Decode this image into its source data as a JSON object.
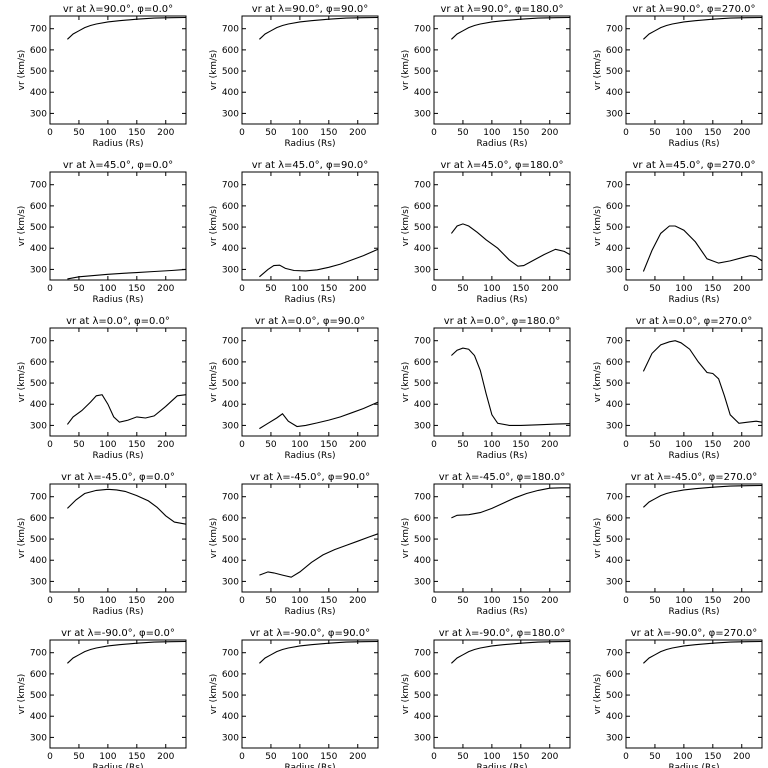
{
  "figure": {
    "background": "#ffffff",
    "line_color": "#000000"
  },
  "chart_data": [
    {
      "type": "line",
      "title": "vr at λ=90.0°, φ=0.0°",
      "xlabel": "Radius (Rs)",
      "ylabel": "vr (km/s)",
      "xlim": [
        0,
        235
      ],
      "ylim": [
        250,
        760
      ],
      "xticks": [
        0,
        50,
        100,
        150,
        200
      ],
      "yticks": [
        300,
        400,
        500,
        600,
        700
      ],
      "grid": false,
      "series": [
        {
          "x": [
            30,
            40,
            50,
            60,
            70,
            80,
            100,
            120,
            150,
            180,
            210,
            235
          ],
          "y": [
            650,
            675,
            690,
            705,
            715,
            722,
            732,
            738,
            745,
            750,
            752,
            753
          ]
        }
      ]
    },
    {
      "type": "line",
      "title": "vr at λ=90.0°, φ=90.0°",
      "xlabel": "Radius (Rs)",
      "ylabel": "vr (km/s)",
      "xlim": [
        0,
        235
      ],
      "ylim": [
        250,
        760
      ],
      "xticks": [
        0,
        50,
        100,
        150,
        200
      ],
      "yticks": [
        300,
        400,
        500,
        600,
        700
      ],
      "grid": false,
      "series": [
        {
          "x": [
            30,
            40,
            50,
            60,
            70,
            80,
            100,
            120,
            150,
            180,
            210,
            235
          ],
          "y": [
            650,
            675,
            690,
            705,
            715,
            722,
            732,
            738,
            745,
            750,
            752,
            753
          ]
        }
      ]
    },
    {
      "type": "line",
      "title": "vr at λ=90.0°, φ=180.0°",
      "xlabel": "Radius (Rs)",
      "ylabel": "vr (km/s)",
      "xlim": [
        0,
        235
      ],
      "ylim": [
        250,
        760
      ],
      "xticks": [
        0,
        50,
        100,
        150,
        200
      ],
      "yticks": [
        300,
        400,
        500,
        600,
        700
      ],
      "grid": false,
      "series": [
        {
          "x": [
            30,
            40,
            50,
            60,
            70,
            80,
            100,
            120,
            150,
            180,
            210,
            235
          ],
          "y": [
            650,
            675,
            690,
            705,
            715,
            722,
            732,
            738,
            745,
            750,
            752,
            753
          ]
        }
      ]
    },
    {
      "type": "line",
      "title": "vr at λ=90.0°, φ=270.0°",
      "xlabel": "Radius (Rs)",
      "ylabel": "vr (km/s)",
      "xlim": [
        0,
        235
      ],
      "ylim": [
        250,
        760
      ],
      "xticks": [
        0,
        50,
        100,
        150,
        200
      ],
      "yticks": [
        300,
        400,
        500,
        600,
        700
      ],
      "grid": false,
      "series": [
        {
          "x": [
            30,
            40,
            50,
            60,
            70,
            80,
            100,
            120,
            150,
            180,
            210,
            235
          ],
          "y": [
            650,
            675,
            690,
            705,
            715,
            722,
            732,
            738,
            745,
            750,
            752,
            753
          ]
        }
      ]
    },
    {
      "type": "line",
      "title": "vr at λ=45.0°, φ=0.0°",
      "xlabel": "Radius (Rs)",
      "ylabel": "vr (km/s)",
      "xlim": [
        0,
        235
      ],
      "ylim": [
        250,
        760
      ],
      "xticks": [
        0,
        50,
        100,
        150,
        200
      ],
      "yticks": [
        300,
        400,
        500,
        600,
        700
      ],
      "grid": false,
      "series": [
        {
          "x": [
            30,
            50,
            80,
            100,
            130,
            150,
            180,
            210,
            235
          ],
          "y": [
            255,
            265,
            272,
            277,
            282,
            285,
            290,
            295,
            300
          ]
        }
      ]
    },
    {
      "type": "line",
      "title": "vr at λ=45.0°, φ=90.0°",
      "xlabel": "Radius (Rs)",
      "ylabel": "vr (km/s)",
      "xlim": [
        0,
        235
      ],
      "ylim": [
        250,
        760
      ],
      "xticks": [
        0,
        50,
        100,
        150,
        200
      ],
      "yticks": [
        300,
        400,
        500,
        600,
        700
      ],
      "grid": false,
      "series": [
        {
          "x": [
            30,
            45,
            55,
            65,
            75,
            90,
            110,
            130,
            150,
            170,
            190,
            210,
            235
          ],
          "y": [
            265,
            300,
            318,
            320,
            305,
            295,
            293,
            298,
            310,
            325,
            345,
            365,
            395
          ]
        }
      ]
    },
    {
      "type": "line",
      "title": "vr at λ=45.0°, φ=180.0°",
      "xlabel": "Radius (Rs)",
      "ylabel": "vr (km/s)",
      "xlim": [
        0,
        235
      ],
      "ylim": [
        250,
        760
      ],
      "xticks": [
        0,
        50,
        100,
        150,
        200
      ],
      "yticks": [
        300,
        400,
        500,
        600,
        700
      ],
      "grid": false,
      "series": [
        {
          "x": [
            30,
            40,
            50,
            60,
            75,
            90,
            110,
            130,
            145,
            155,
            170,
            190,
            210,
            225,
            235
          ],
          "y": [
            470,
            505,
            515,
            505,
            475,
            440,
            400,
            345,
            315,
            318,
            340,
            370,
            395,
            385,
            370
          ]
        }
      ]
    },
    {
      "type": "line",
      "title": "vr at λ=45.0°, φ=270.0°",
      "xlabel": "Radius (Rs)",
      "ylabel": "vr (km/s)",
      "xlim": [
        0,
        235
      ],
      "ylim": [
        250,
        760
      ],
      "xticks": [
        0,
        50,
        100,
        150,
        200
      ],
      "yticks": [
        300,
        400,
        500,
        600,
        700
      ],
      "grid": false,
      "series": [
        {
          "x": [
            30,
            45,
            60,
            75,
            85,
            100,
            120,
            140,
            160,
            180,
            200,
            215,
            225,
            235
          ],
          "y": [
            290,
            390,
            470,
            505,
            505,
            485,
            430,
            350,
            330,
            340,
            355,
            365,
            360,
            340
          ]
        }
      ]
    },
    {
      "type": "line",
      "title": "vr at λ=0.0°, φ=0.0°",
      "xlabel": "Radius (Rs)",
      "ylabel": "vr (km/s)",
      "xlim": [
        0,
        235
      ],
      "ylim": [
        250,
        760
      ],
      "xticks": [
        0,
        50,
        100,
        150,
        200
      ],
      "yticks": [
        300,
        400,
        500,
        600,
        700
      ],
      "grid": false,
      "series": [
        {
          "x": [
            30,
            40,
            55,
            70,
            80,
            90,
            100,
            110,
            120,
            135,
            150,
            165,
            180,
            200,
            220,
            235
          ],
          "y": [
            305,
            340,
            370,
            410,
            440,
            445,
            400,
            340,
            315,
            325,
            340,
            335,
            345,
            390,
            440,
            445
          ]
        }
      ]
    },
    {
      "type": "line",
      "title": "vr at λ=0.0°, φ=90.0°",
      "xlabel": "Radius (Rs)",
      "ylabel": "vr (km/s)",
      "xlim": [
        0,
        235
      ],
      "ylim": [
        250,
        760
      ],
      "xticks": [
        0,
        50,
        100,
        150,
        200
      ],
      "yticks": [
        300,
        400,
        500,
        600,
        700
      ],
      "grid": false,
      "series": [
        {
          "x": [
            30,
            45,
            60,
            70,
            80,
            95,
            110,
            130,
            150,
            170,
            190,
            210,
            235
          ],
          "y": [
            285,
            310,
            335,
            355,
            320,
            295,
            300,
            312,
            325,
            340,
            360,
            380,
            410
          ]
        }
      ]
    },
    {
      "type": "line",
      "title": "vr at λ=0.0°, φ=180.0°",
      "xlabel": "Radius (Rs)",
      "ylabel": "vr (km/s)",
      "xlim": [
        0,
        235
      ],
      "ylim": [
        250,
        760
      ],
      "xticks": [
        0,
        50,
        100,
        150,
        200
      ],
      "yticks": [
        300,
        400,
        500,
        600,
        700
      ],
      "grid": false,
      "series": [
        {
          "x": [
            30,
            40,
            50,
            60,
            70,
            80,
            90,
            100,
            110,
            130,
            150,
            180,
            210,
            235
          ],
          "y": [
            630,
            655,
            665,
            660,
            630,
            560,
            450,
            350,
            310,
            300,
            300,
            303,
            306,
            308
          ]
        }
      ]
    },
    {
      "type": "line",
      "title": "vr at λ=0.0°, φ=270.0°",
      "xlabel": "Radius (Rs)",
      "ylabel": "vr (km/s)",
      "xlim": [
        0,
        235
      ],
      "ylim": [
        250,
        760
      ],
      "xticks": [
        0,
        50,
        100,
        150,
        200
      ],
      "yticks": [
        300,
        400,
        500,
        600,
        700
      ],
      "grid": false,
      "series": [
        {
          "x": [
            30,
            45,
            60,
            75,
            85,
            95,
            110,
            125,
            140,
            150,
            160,
            170,
            180,
            195,
            210,
            225,
            235
          ],
          "y": [
            555,
            640,
            680,
            695,
            700,
            690,
            660,
            600,
            550,
            545,
            520,
            440,
            350,
            310,
            315,
            320,
            315
          ]
        }
      ]
    },
    {
      "type": "line",
      "title": "vr at λ=-45.0°, φ=0.0°",
      "xlabel": "Radius (Rs)",
      "ylabel": "vr (km/s)",
      "xlim": [
        0,
        235
      ],
      "ylim": [
        250,
        760
      ],
      "xticks": [
        0,
        50,
        100,
        150,
        200
      ],
      "yticks": [
        300,
        400,
        500,
        600,
        700
      ],
      "grid": false,
      "series": [
        {
          "x": [
            30,
            45,
            60,
            80,
            100,
            115,
            130,
            150,
            170,
            185,
            200,
            215,
            235
          ],
          "y": [
            645,
            685,
            715,
            730,
            735,
            732,
            725,
            705,
            680,
            650,
            610,
            580,
            570
          ]
        }
      ]
    },
    {
      "type": "line",
      "title": "vr at λ=-45.0°, φ=90.0°",
      "xlabel": "Radius (Rs)",
      "ylabel": "vr (km/s)",
      "xlim": [
        0,
        235
      ],
      "ylim": [
        250,
        760
      ],
      "xticks": [
        0,
        50,
        100,
        150,
        200
      ],
      "yticks": [
        300,
        400,
        500,
        600,
        700
      ],
      "grid": false,
      "series": [
        {
          "x": [
            30,
            45,
            55,
            70,
            85,
            100,
            120,
            140,
            160,
            180,
            200,
            220,
            235
          ],
          "y": [
            330,
            345,
            340,
            330,
            320,
            345,
            390,
            425,
            450,
            470,
            490,
            510,
            525
          ]
        }
      ]
    },
    {
      "type": "line",
      "title": "vr at λ=-45.0°, φ=180.0°",
      "xlabel": "Radius (Rs)",
      "ylabel": "vr (km/s)",
      "xlim": [
        0,
        235
      ],
      "ylim": [
        250,
        760
      ],
      "xticks": [
        0,
        50,
        100,
        150,
        200
      ],
      "yticks": [
        300,
        400,
        500,
        600,
        700
      ],
      "grid": false,
      "series": [
        {
          "x": [
            30,
            40,
            60,
            80,
            100,
            120,
            140,
            160,
            180,
            200,
            220,
            235
          ],
          "y": [
            600,
            612,
            615,
            625,
            645,
            670,
            695,
            715,
            730,
            740,
            742,
            742
          ]
        }
      ]
    },
    {
      "type": "line",
      "title": "vr at λ=-45.0°, φ=270.0°",
      "xlabel": "Radius (Rs)",
      "ylabel": "vr (km/s)",
      "xlim": [
        0,
        235
      ],
      "ylim": [
        250,
        760
      ],
      "xticks": [
        0,
        50,
        100,
        150,
        200
      ],
      "yticks": [
        300,
        400,
        500,
        600,
        700
      ],
      "grid": false,
      "series": [
        {
          "x": [
            30,
            40,
            50,
            60,
            70,
            80,
            100,
            120,
            150,
            180,
            210,
            235
          ],
          "y": [
            650,
            675,
            690,
            705,
            715,
            722,
            732,
            738,
            745,
            750,
            752,
            753
          ]
        }
      ]
    },
    {
      "type": "line",
      "title": "vr at λ=-90.0°, φ=0.0°",
      "xlabel": "Radius (Rs)",
      "ylabel": "vr (km/s)",
      "xlim": [
        0,
        235
      ],
      "ylim": [
        250,
        760
      ],
      "xticks": [
        0,
        50,
        100,
        150,
        200
      ],
      "yticks": [
        300,
        400,
        500,
        600,
        700
      ],
      "grid": false,
      "series": [
        {
          "x": [
            30,
            40,
            50,
            60,
            70,
            80,
            100,
            120,
            150,
            180,
            210,
            235
          ],
          "y": [
            650,
            675,
            690,
            705,
            715,
            722,
            732,
            738,
            745,
            750,
            752,
            753
          ]
        }
      ]
    },
    {
      "type": "line",
      "title": "vr at λ=-90.0°, φ=90.0°",
      "xlabel": "Radius (Rs)",
      "ylabel": "vr (km/s)",
      "xlim": [
        0,
        235
      ],
      "ylim": [
        250,
        760
      ],
      "xticks": [
        0,
        50,
        100,
        150,
        200
      ],
      "yticks": [
        300,
        400,
        500,
        600,
        700
      ],
      "grid": false,
      "series": [
        {
          "x": [
            30,
            40,
            50,
            60,
            70,
            80,
            100,
            120,
            150,
            180,
            210,
            235
          ],
          "y": [
            650,
            675,
            690,
            705,
            715,
            722,
            732,
            738,
            745,
            750,
            752,
            753
          ]
        }
      ]
    },
    {
      "type": "line",
      "title": "vr at λ=-90.0°, φ=180.0°",
      "xlabel": "Radius (Rs)",
      "ylabel": "vr (km/s)",
      "xlim": [
        0,
        235
      ],
      "ylim": [
        250,
        760
      ],
      "xticks": [
        0,
        50,
        100,
        150,
        200
      ],
      "yticks": [
        300,
        400,
        500,
        600,
        700
      ],
      "grid": false,
      "series": [
        {
          "x": [
            30,
            40,
            50,
            60,
            70,
            80,
            100,
            120,
            150,
            180,
            210,
            235
          ],
          "y": [
            650,
            675,
            690,
            705,
            715,
            722,
            732,
            738,
            745,
            750,
            752,
            753
          ]
        }
      ]
    },
    {
      "type": "line",
      "title": "vr at λ=-90.0°, φ=270.0°",
      "xlabel": "Radius (Rs)",
      "ylabel": "vr (km/s)",
      "xlim": [
        0,
        235
      ],
      "ylim": [
        250,
        760
      ],
      "xticks": [
        0,
        50,
        100,
        150,
        200
      ],
      "yticks": [
        300,
        400,
        500,
        600,
        700
      ],
      "grid": false,
      "series": [
        {
          "x": [
            30,
            40,
            50,
            60,
            70,
            80,
            100,
            120,
            150,
            180,
            210,
            235
          ],
          "y": [
            650,
            675,
            690,
            705,
            715,
            722,
            732,
            738,
            745,
            750,
            752,
            753
          ]
        }
      ]
    }
  ]
}
